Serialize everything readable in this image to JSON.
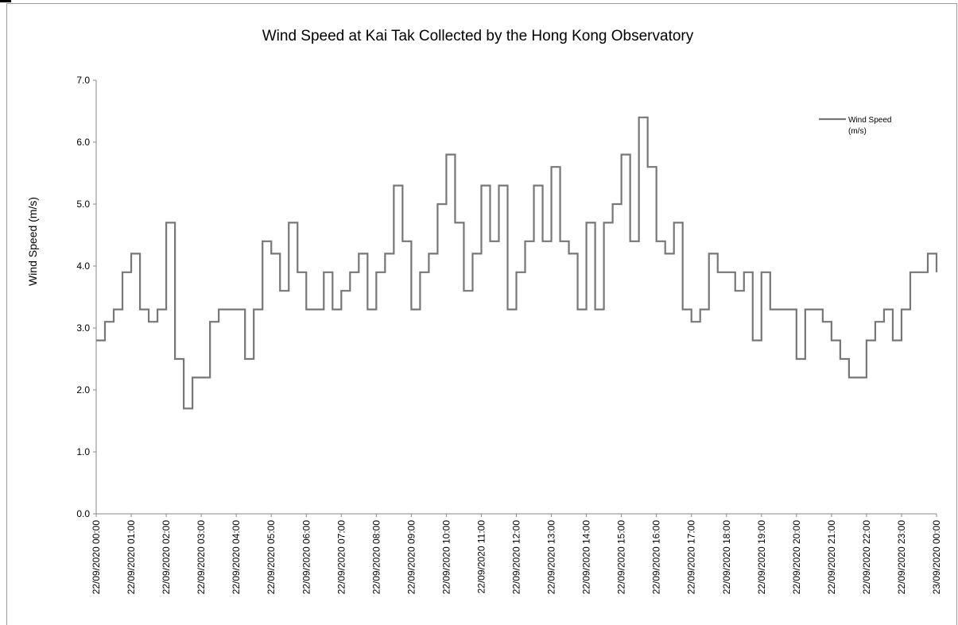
{
  "chart_data": {
    "type": "line",
    "title": "Wind Speed at Kai Tak Collected by the Hong Kong Observatory",
    "xlabel": "",
    "ylabel": "Wind Speed (m/s)",
    "ylim": [
      0,
      7
    ],
    "yticks": [
      "0.0",
      "1.0",
      "2.0",
      "3.0",
      "4.0",
      "5.0",
      "6.0",
      "7.0"
    ],
    "xticks": [
      "22/09/2020 00:00",
      "22/09/2020 01:00",
      "22/09/2020 02:00",
      "22/09/2020 03:00",
      "22/09/2020 04:00",
      "22/09/2020 05:00",
      "22/09/2020 06:00",
      "22/09/2020 07:00",
      "22/09/2020 08:00",
      "22/09/2020 09:00",
      "22/09/2020 10:00",
      "22/09/2020 11:00",
      "22/09/2020 12:00",
      "22/09/2020 13:00",
      "22/09/2020 14:00",
      "22/09/2020 15:00",
      "22/09/2020 16:00",
      "22/09/2020 17:00",
      "22/09/2020 18:00",
      "22/09/2020 19:00",
      "22/09/2020 20:00",
      "22/09/2020 21:00",
      "22/09/2020 22:00",
      "22/09/2020 23:00",
      "23/09/2020 00:00"
    ],
    "grid": false,
    "legend_position": "top-right",
    "series": [
      {
        "name": "Wind Speed (m/s)",
        "color": "#777777",
        "x": [
          "22/09/2020 00:00",
          "22/09/2020 00:15",
          "22/09/2020 00:30",
          "22/09/2020 00:45",
          "22/09/2020 01:00",
          "22/09/2020 01:15",
          "22/09/2020 01:30",
          "22/09/2020 01:45",
          "22/09/2020 02:00",
          "22/09/2020 02:15",
          "22/09/2020 02:30",
          "22/09/2020 02:45",
          "22/09/2020 03:00",
          "22/09/2020 03:15",
          "22/09/2020 03:30",
          "22/09/2020 03:45",
          "22/09/2020 04:00",
          "22/09/2020 04:15",
          "22/09/2020 04:30",
          "22/09/2020 04:45",
          "22/09/2020 05:00",
          "22/09/2020 05:15",
          "22/09/2020 05:30",
          "22/09/2020 05:45",
          "22/09/2020 06:00",
          "22/09/2020 06:15",
          "22/09/2020 06:30",
          "22/09/2020 06:45",
          "22/09/2020 07:00",
          "22/09/2020 07:15",
          "22/09/2020 07:30",
          "22/09/2020 07:45",
          "22/09/2020 08:00",
          "22/09/2020 08:15",
          "22/09/2020 08:30",
          "22/09/2020 08:45",
          "22/09/2020 09:00",
          "22/09/2020 09:15",
          "22/09/2020 09:30",
          "22/09/2020 09:45",
          "22/09/2020 10:00",
          "22/09/2020 10:15",
          "22/09/2020 10:30",
          "22/09/2020 10:45",
          "22/09/2020 11:00",
          "22/09/2020 11:15",
          "22/09/2020 11:30",
          "22/09/2020 11:45",
          "22/09/2020 12:00",
          "22/09/2020 12:15",
          "22/09/2020 12:30",
          "22/09/2020 12:45",
          "22/09/2020 13:00",
          "22/09/2020 13:15",
          "22/09/2020 13:30",
          "22/09/2020 13:45",
          "22/09/2020 14:00",
          "22/09/2020 14:15",
          "22/09/2020 14:30",
          "22/09/2020 14:45",
          "22/09/2020 15:00",
          "22/09/2020 15:15",
          "22/09/2020 15:30",
          "22/09/2020 15:45",
          "22/09/2020 16:00",
          "22/09/2020 16:15",
          "22/09/2020 16:30",
          "22/09/2020 16:45",
          "22/09/2020 17:00",
          "22/09/2020 17:15",
          "22/09/2020 17:30",
          "22/09/2020 17:45",
          "22/09/2020 18:00",
          "22/09/2020 18:15",
          "22/09/2020 18:30",
          "22/09/2020 18:45",
          "22/09/2020 19:00",
          "22/09/2020 19:15",
          "22/09/2020 19:30",
          "22/09/2020 19:45",
          "22/09/2020 20:00",
          "22/09/2020 20:15",
          "22/09/2020 20:30",
          "22/09/2020 20:45",
          "22/09/2020 21:00",
          "22/09/2020 21:15",
          "22/09/2020 21:30",
          "22/09/2020 21:45",
          "22/09/2020 22:00",
          "22/09/2020 22:15",
          "22/09/2020 22:30",
          "22/09/2020 22:45",
          "22/09/2020 23:00",
          "22/09/2020 23:15",
          "22/09/2020 23:30",
          "22/09/2020 23:45",
          "23/09/2020 00:00"
        ],
        "values": [
          2.8,
          3.1,
          3.3,
          3.9,
          4.2,
          3.3,
          3.1,
          3.3,
          4.7,
          2.5,
          1.7,
          2.2,
          2.2,
          3.1,
          3.3,
          3.3,
          3.3,
          2.5,
          3.3,
          4.4,
          4.2,
          3.6,
          4.7,
          3.9,
          3.3,
          3.3,
          3.9,
          3.3,
          3.6,
          3.9,
          4.2,
          3.3,
          3.9,
          4.2,
          5.3,
          4.4,
          3.3,
          3.9,
          4.2,
          5.0,
          5.8,
          4.7,
          3.6,
          4.2,
          5.3,
          4.4,
          5.3,
          3.3,
          3.9,
          4.4,
          5.3,
          4.4,
          5.6,
          4.4,
          4.2,
          3.3,
          4.7,
          3.3,
          4.7,
          5.0,
          5.8,
          4.4,
          6.4,
          5.6,
          4.4,
          4.2,
          4.7,
          3.3,
          3.1,
          3.3,
          4.2,
          3.9,
          3.9,
          3.6,
          3.9,
          2.8,
          3.9,
          3.3,
          3.3,
          3.3,
          2.5,
          3.3,
          3.3,
          3.1,
          2.8,
          2.5,
          2.2,
          2.2,
          2.8,
          3.1,
          3.3,
          2.8,
          3.3,
          3.9,
          3.9,
          4.2,
          3.9
        ]
      }
    ]
  }
}
